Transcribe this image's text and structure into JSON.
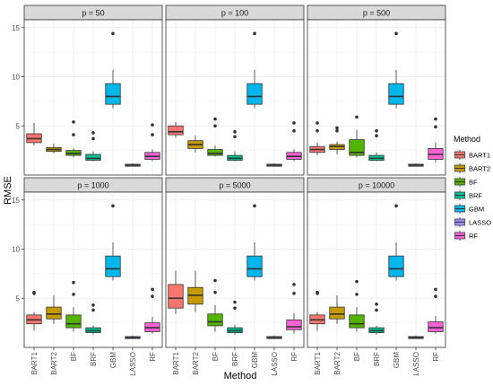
{
  "chart_data": {
    "type": "boxplot",
    "facet_variable": "p",
    "xlabel": "Method",
    "ylabel": "RMSE",
    "ylim": [
      0,
      15.8
    ],
    "yticks": [
      5,
      10,
      15
    ],
    "grid": true,
    "legend": {
      "title": "Method",
      "placement": "right",
      "items": [
        "BART1",
        "BART2",
        "BF",
        "BRF",
        "GBM",
        "LASSO",
        "RF"
      ]
    },
    "categories": [
      "BART1",
      "BART2",
      "BF",
      "BRF",
      "GBM",
      "LASSO",
      "RF"
    ],
    "colors": {
      "BART1": "#F8766D",
      "BART2": "#C49A00",
      "BF": "#53B400",
      "BRF": "#00C094",
      "GBM": "#00B6EB",
      "LASSO": "#A58AFF",
      "RF": "#FB61D7"
    },
    "facets": [
      {
        "label": "p = 50",
        "boxes": [
          {
            "method": "BART1",
            "min": 3.0,
            "q1": 3.3,
            "median": 3.7,
            "q3": 4.2,
            "max": 5.3,
            "outliers": []
          },
          {
            "method": "BART2",
            "min": 2.2,
            "q1": 2.4,
            "median": 2.6,
            "q3": 2.8,
            "max": 3.2,
            "outliers": []
          },
          {
            "method": "BF",
            "min": 1.8,
            "q1": 2.0,
            "median": 2.2,
            "q3": 2.5,
            "max": 2.7,
            "outliers": [
              4.1,
              5.4
            ]
          },
          {
            "method": "BRF",
            "min": 1.4,
            "q1": 1.5,
            "median": 1.7,
            "q3": 2.1,
            "max": 2.4,
            "outliers": [
              3.7,
              4.3
            ]
          },
          {
            "method": "GBM",
            "min": 6.8,
            "q1": 7.2,
            "median": 8.0,
            "q3": 9.3,
            "max": 10.7,
            "outliers": [
              14.4
            ]
          },
          {
            "method": "LASSO",
            "min": 0.85,
            "q1": 0.9,
            "median": 1.0,
            "q3": 1.1,
            "max": 1.2,
            "outliers": []
          },
          {
            "method": "RF",
            "min": 1.4,
            "q1": 1.6,
            "median": 1.9,
            "q3": 2.3,
            "max": 2.6,
            "outliers": [
              4.1,
              5.1
            ]
          }
        ]
      },
      {
        "label": "p = 100",
        "boxes": [
          {
            "method": "BART1",
            "min": 3.8,
            "q1": 4.1,
            "median": 4.4,
            "q3": 5.0,
            "max": 5.4,
            "outliers": []
          },
          {
            "method": "BART2",
            "min": 2.3,
            "q1": 2.7,
            "median": 3.1,
            "q3": 3.5,
            "max": 4.0,
            "outliers": []
          },
          {
            "method": "BF",
            "min": 1.9,
            "q1": 2.0,
            "median": 2.2,
            "q3": 2.6,
            "max": 3.0,
            "outliers": [
              5.0,
              5.7
            ]
          },
          {
            "method": "BRF",
            "min": 1.4,
            "q1": 1.5,
            "median": 1.7,
            "q3": 2.0,
            "max": 2.4,
            "outliers": [
              3.9,
              4.4
            ]
          },
          {
            "method": "GBM",
            "min": 6.8,
            "q1": 7.2,
            "median": 8.0,
            "q3": 9.3,
            "max": 10.7,
            "outliers": [
              14.4
            ]
          },
          {
            "method": "LASSO",
            "min": 0.85,
            "q1": 0.9,
            "median": 1.0,
            "q3": 1.1,
            "max": 1.2,
            "outliers": []
          },
          {
            "method": "RF",
            "min": 1.4,
            "q1": 1.6,
            "median": 1.9,
            "q3": 2.3,
            "max": 2.6,
            "outliers": [
              4.5,
              5.3
            ]
          }
        ]
      },
      {
        "label": "p = 500",
        "boxes": [
          {
            "method": "BART1",
            "min": 2.0,
            "q1": 2.3,
            "median": 2.6,
            "q3": 2.9,
            "max": 3.3,
            "outliers": [
              4.5,
              5.3
            ]
          },
          {
            "method": "BART2",
            "min": 2.1,
            "q1": 2.6,
            "median": 2.9,
            "q3": 3.1,
            "max": 3.4,
            "outliers": [
              4.5,
              4.8
            ]
          },
          {
            "method": "BF",
            "min": 1.8,
            "q1": 2.0,
            "median": 2.3,
            "q3": 3.6,
            "max": 4.6,
            "outliers": [
              5.9
            ]
          },
          {
            "method": "BRF",
            "min": 1.4,
            "q1": 1.5,
            "median": 1.7,
            "q3": 2.0,
            "max": 2.3,
            "outliers": [
              4.0,
              4.5
            ]
          },
          {
            "method": "GBM",
            "min": 6.8,
            "q1": 7.2,
            "median": 8.0,
            "q3": 9.3,
            "max": 10.7,
            "outliers": [
              14.4
            ]
          },
          {
            "method": "LASSO",
            "min": 0.85,
            "q1": 0.9,
            "median": 1.0,
            "q3": 1.1,
            "max": 1.2,
            "outliers": []
          },
          {
            "method": "RF",
            "min": 1.3,
            "q1": 1.6,
            "median": 2.1,
            "q3": 2.7,
            "max": 3.3,
            "outliers": [
              4.9,
              5.7
            ]
          }
        ]
      },
      {
        "label": "p = 1000",
        "boxes": [
          {
            "method": "BART1",
            "min": 1.7,
            "q1": 2.4,
            "median": 2.8,
            "q3": 3.3,
            "max": 3.6,
            "outliers": [
              5.5,
              5.6
            ]
          },
          {
            "method": "BART2",
            "min": 2.4,
            "q1": 2.9,
            "median": 3.4,
            "q3": 4.1,
            "max": 5.3,
            "outliers": []
          },
          {
            "method": "BF",
            "min": 1.6,
            "q1": 2.0,
            "median": 2.4,
            "q3": 3.3,
            "max": 4.1,
            "outliers": [
              5.4,
              6.6
            ]
          },
          {
            "method": "BRF",
            "min": 1.3,
            "q1": 1.5,
            "median": 1.7,
            "q3": 2.0,
            "max": 2.2,
            "outliers": [
              3.8,
              4.3
            ]
          },
          {
            "method": "GBM",
            "min": 6.8,
            "q1": 7.2,
            "median": 8.0,
            "q3": 9.3,
            "max": 10.7,
            "outliers": [
              14.4
            ]
          },
          {
            "method": "LASSO",
            "min": 0.85,
            "q1": 0.9,
            "median": 1.0,
            "q3": 1.1,
            "max": 1.2,
            "outliers": []
          },
          {
            "method": "RF",
            "min": 1.4,
            "q1": 1.6,
            "median": 2.0,
            "q3": 2.5,
            "max": 3.1,
            "outliers": [
              5.2,
              5.9
            ]
          }
        ]
      },
      {
        "label": "p = 5000",
        "boxes": [
          {
            "method": "BART1",
            "min": 3.4,
            "q1": 4.0,
            "median": 5.0,
            "q3": 6.4,
            "max": 7.8,
            "outliers": []
          },
          {
            "method": "BART2",
            "min": 3.6,
            "q1": 4.4,
            "median": 5.3,
            "q3": 6.1,
            "max": 7.8,
            "outliers": []
          },
          {
            "method": "BF",
            "min": 1.6,
            "q1": 2.2,
            "median": 2.6,
            "q3": 3.4,
            "max": 4.3,
            "outliers": [
              5.6,
              6.8
            ]
          },
          {
            "method": "BRF",
            "min": 1.3,
            "q1": 1.5,
            "median": 1.7,
            "q3": 2.0,
            "max": 2.3,
            "outliers": [
              4.0,
              4.6
            ]
          },
          {
            "method": "GBM",
            "min": 6.8,
            "q1": 7.2,
            "median": 8.0,
            "q3": 9.3,
            "max": 10.7,
            "outliers": [
              14.4
            ]
          },
          {
            "method": "LASSO",
            "min": 0.85,
            "q1": 0.9,
            "median": 1.0,
            "q3": 1.1,
            "max": 1.2,
            "outliers": []
          },
          {
            "method": "RF",
            "min": 1.4,
            "q1": 1.8,
            "median": 2.1,
            "q3": 2.8,
            "max": 3.5,
            "outliers": [
              5.5,
              6.4
            ]
          }
        ]
      },
      {
        "label": "p = 10000",
        "boxes": [
          {
            "method": "BART1",
            "min": 1.7,
            "q1": 2.4,
            "median": 2.8,
            "q3": 3.3,
            "max": 3.6,
            "outliers": [
              5.5,
              5.6
            ]
          },
          {
            "method": "BART2",
            "min": 2.4,
            "q1": 2.9,
            "median": 3.4,
            "q3": 4.1,
            "max": 5.3,
            "outliers": []
          },
          {
            "method": "BF",
            "min": 1.6,
            "q1": 2.0,
            "median": 2.4,
            "q3": 3.3,
            "max": 4.1,
            "outliers": [
              5.4,
              6.7
            ]
          },
          {
            "method": "BRF",
            "min": 1.3,
            "q1": 1.5,
            "median": 1.7,
            "q3": 2.0,
            "max": 2.2,
            "outliers": [
              3.8,
              4.4
            ]
          },
          {
            "method": "GBM",
            "min": 6.8,
            "q1": 7.2,
            "median": 8.0,
            "q3": 9.3,
            "max": 10.7,
            "outliers": [
              14.4
            ]
          },
          {
            "method": "LASSO",
            "min": 0.85,
            "q1": 0.9,
            "median": 1.0,
            "q3": 1.1,
            "max": 1.2,
            "outliers": []
          },
          {
            "method": "RF",
            "min": 1.4,
            "q1": 1.6,
            "median": 2.0,
            "q3": 2.6,
            "max": 3.2,
            "outliers": [
              5.2,
              5.9
            ]
          }
        ]
      }
    ]
  }
}
